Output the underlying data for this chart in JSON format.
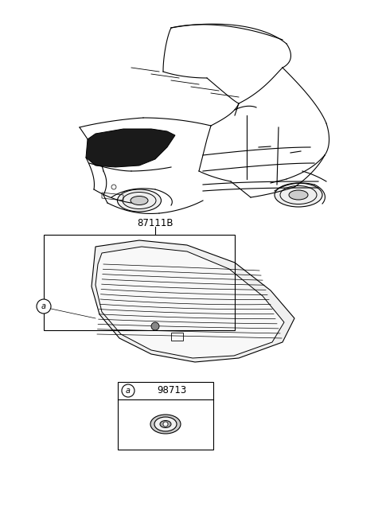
{
  "bg_color": "#ffffff",
  "lc": "#000000",
  "lw": 0.8,
  "label_87111B": "87111B",
  "label_98713": "98713",
  "label_a": "a",
  "fig_w": 4.8,
  "fig_h": 6.56,
  "dpi": 100
}
